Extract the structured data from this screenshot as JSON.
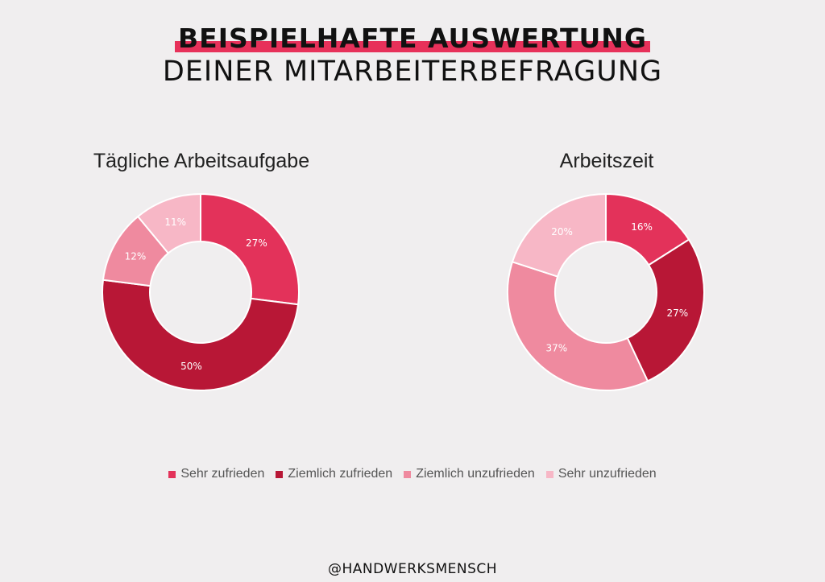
{
  "header": {
    "line1": "BEISPIELHAFTE AUSWERTUNG",
    "line2": "DEINER MITARBEITERBEFRAGUNG",
    "highlight_color": "#e7315a"
  },
  "legend": [
    {
      "label": "Sehr zufrieden",
      "color": "#e3325a"
    },
    {
      "label": "Ziemlich zufrieden",
      "color": "#b81736"
    },
    {
      "label": "Ziemlich unzufrieden",
      "color": "#ef8a9f"
    },
    {
      "label": "Sehr unzufrieden",
      "color": "#f7b7c6"
    }
  ],
  "chart_data": [
    {
      "type": "pie",
      "title": "Tägliche Arbeitsaufgabe",
      "categories": [
        "Sehr zufrieden",
        "Ziemlich zufrieden",
        "Ziemlich unzufrieden",
        "Sehr unzufrieden"
      ],
      "values": [
        27,
        50,
        12,
        11
      ],
      "labels": [
        "27%",
        "50%",
        "12%",
        "11%"
      ],
      "colors": [
        "#e3325a",
        "#b81736",
        "#ef8a9f",
        "#f7b7c6"
      ]
    },
    {
      "type": "pie",
      "title": "Arbeitszeit",
      "categories": [
        "Sehr zufrieden",
        "Ziemlich zufrieden",
        "Ziemlich unzufrieden",
        "Sehr unzufrieden"
      ],
      "values": [
        16,
        27,
        37,
        20
      ],
      "labels": [
        "16%",
        "27%",
        "37%",
        "20%"
      ],
      "colors": [
        "#e3325a",
        "#b81736",
        "#ef8a9f",
        "#f7b7c6"
      ]
    }
  ],
  "footer": "@HANDWERKSMENSCH"
}
